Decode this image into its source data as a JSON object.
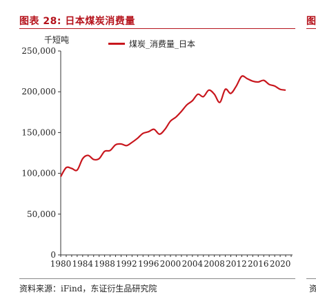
{
  "header": {
    "title": "图表 28: 日本煤炭消费量",
    "right_edge_title": "图"
  },
  "footer": {
    "source": "资料来源：iFind，东证衍生品研究院",
    "right_edge_source": "资"
  },
  "chart_data": {
    "type": "line",
    "unit_label": "千短吨",
    "ylim": [
      0,
      250000
    ],
    "xlim": [
      1980,
      2022
    ],
    "x_ticks": [
      1980,
      1984,
      1988,
      1992,
      1996,
      2000,
      2004,
      2008,
      2012,
      2016,
      2020
    ],
    "y_ticks": [
      0,
      50000,
      100000,
      150000,
      200000,
      250000
    ],
    "y_tick_labels": [
      "0",
      "50,000",
      "100,000",
      "150,000",
      "200,000",
      "250,000"
    ],
    "x_tick_labels": [
      "1980",
      "1984",
      "1988",
      "1992",
      "1996",
      "2000",
      "2004",
      "2008",
      "2012",
      "2016",
      "2020"
    ],
    "legend_position": "top-center",
    "grid": false,
    "series": [
      {
        "name": "煤炭_消费量_日本",
        "color": "#c8161d",
        "x": [
          1980,
          1981,
          1982,
          1983,
          1984,
          1985,
          1986,
          1987,
          1988,
          1989,
          1990,
          1991,
          1992,
          1993,
          1994,
          1995,
          1996,
          1997,
          1998,
          1999,
          2000,
          2001,
          2002,
          2003,
          2004,
          2005,
          2006,
          2007,
          2008,
          2009,
          2010,
          2011,
          2012,
          2013,
          2014,
          2015,
          2016,
          2017,
          2018,
          2019,
          2020,
          2021
        ],
        "values": [
          96000,
          107000,
          106000,
          104000,
          118000,
          122000,
          117000,
          118000,
          127000,
          128000,
          135000,
          136000,
          134000,
          138000,
          143000,
          149000,
          151000,
          154000,
          148000,
          154000,
          164000,
          169000,
          176000,
          184000,
          189000,
          197000,
          194000,
          202000,
          197000,
          187000,
          203000,
          198000,
          207000,
          219000,
          216000,
          213000,
          212000,
          214000,
          209000,
          207000,
          203000,
          202000
        ]
      }
    ]
  }
}
